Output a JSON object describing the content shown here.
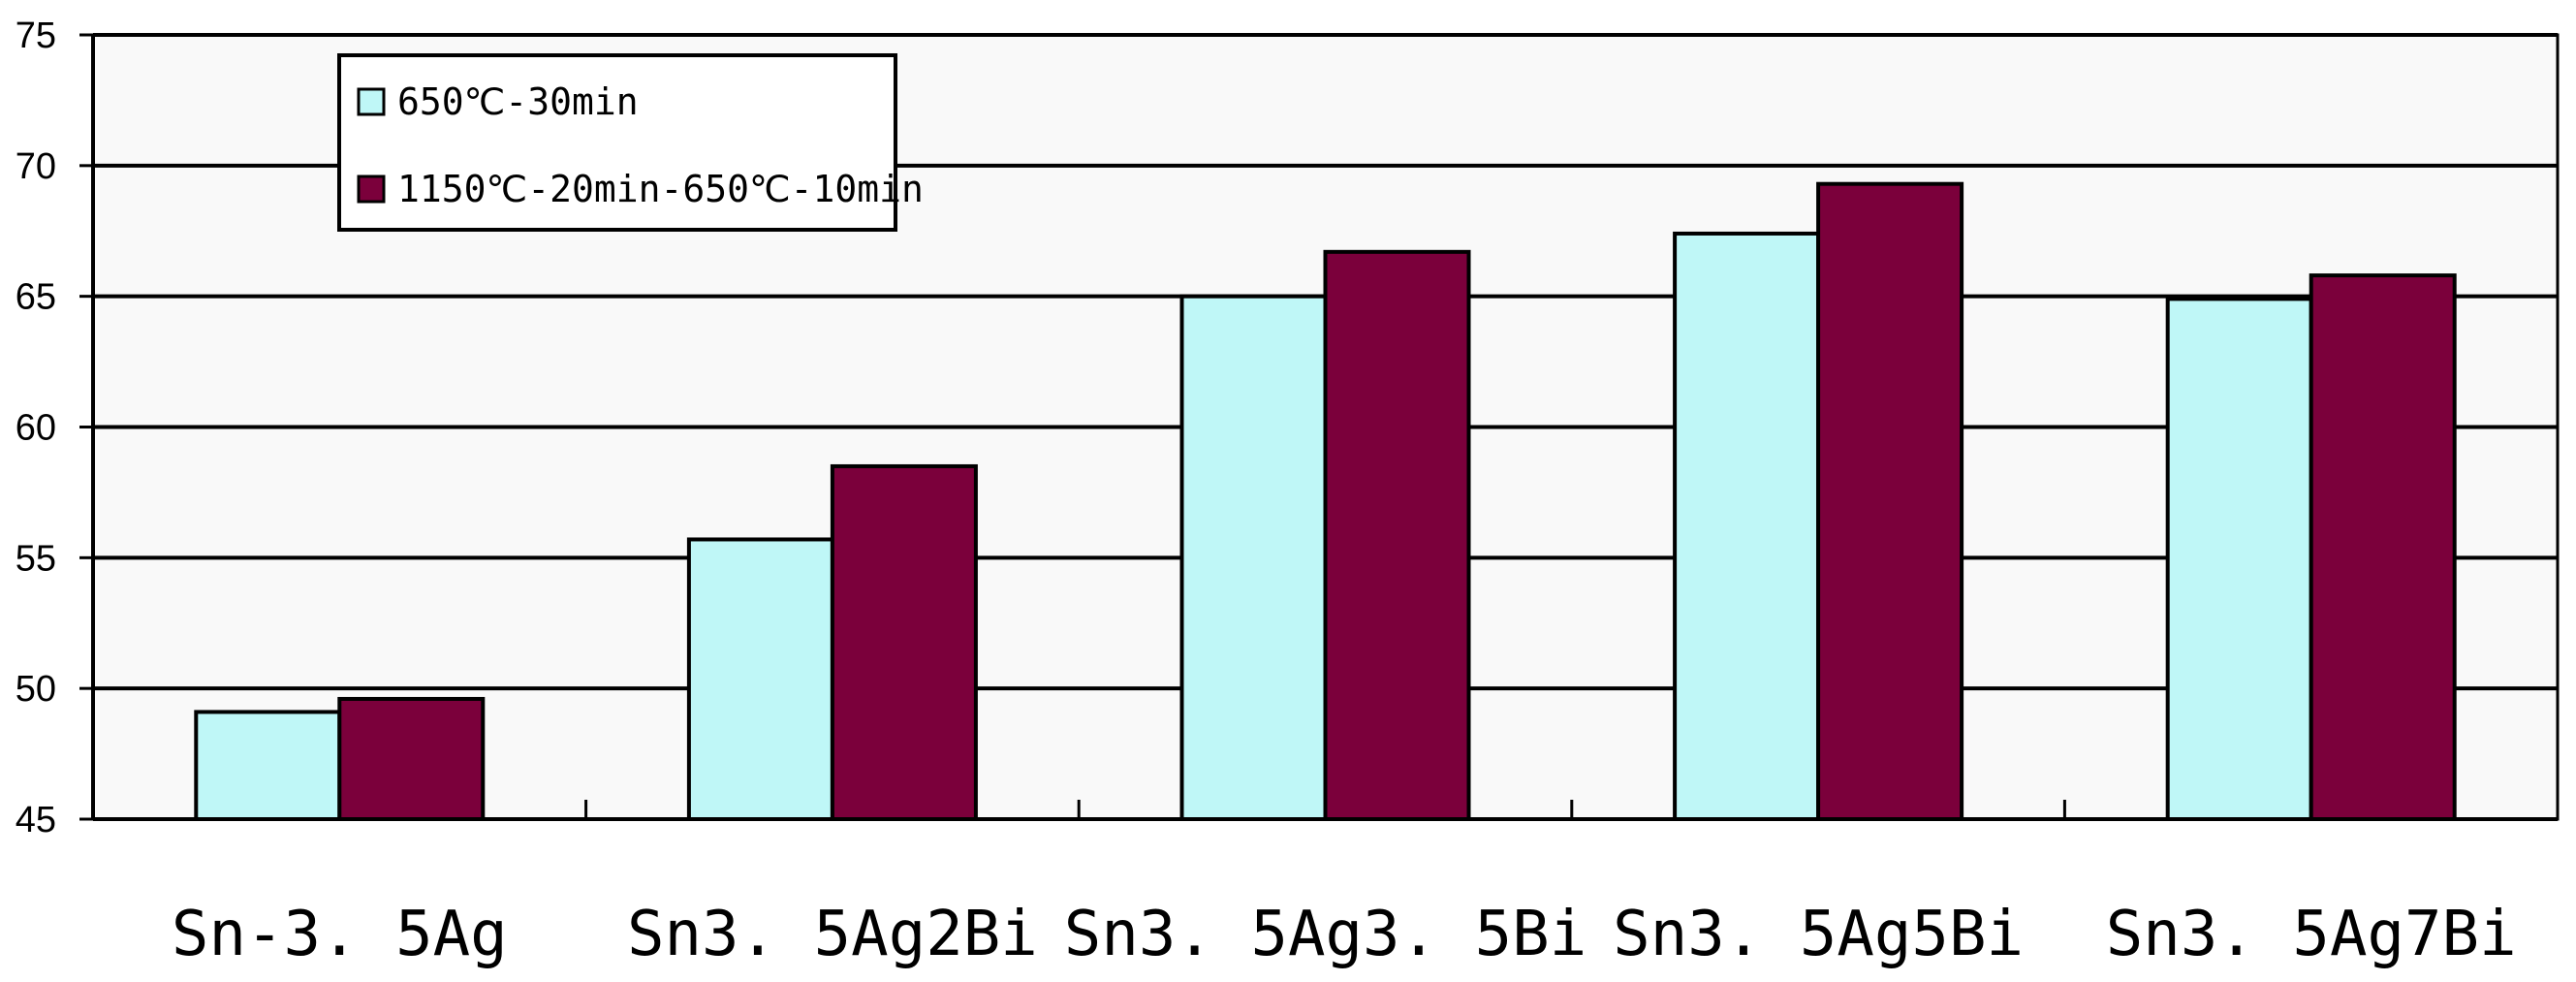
{
  "chart_data": {
    "type": "bar",
    "categories": [
      "Sn-3.5Ag",
      "Sn3.5Ag2Bi",
      "Sn3.5Ag3.5Bi",
      "Sn3.5Ag5Bi",
      "Sn3.5Ag7Bi"
    ],
    "category_labels": [
      "Sn-3. 5Ag",
      "Sn3. 5Ag2Bi",
      "Sn3. 5Ag3. 5Bi",
      "Sn3. 5Ag5Bi",
      "Sn3. 5Ag7Bi"
    ],
    "series": [
      {
        "name": "650℃-30min",
        "color": "#bff7f7",
        "values": [
          49.1,
          55.7,
          65.0,
          67.4,
          64.9
        ]
      },
      {
        "name": "1150℃-20min-650℃-10min",
        "color": "#7b003b",
        "values": [
          49.6,
          58.5,
          66.7,
          69.3,
          65.8
        ]
      }
    ],
    "yticks": [
      45,
      50,
      55,
      60,
      65,
      70,
      75
    ],
    "ylim": [
      45,
      75
    ],
    "grid": true,
    "legend_position": "top-left",
    "plot_background": "#f9f9f9",
    "title": "",
    "xlabel": "",
    "ylabel": ""
  }
}
